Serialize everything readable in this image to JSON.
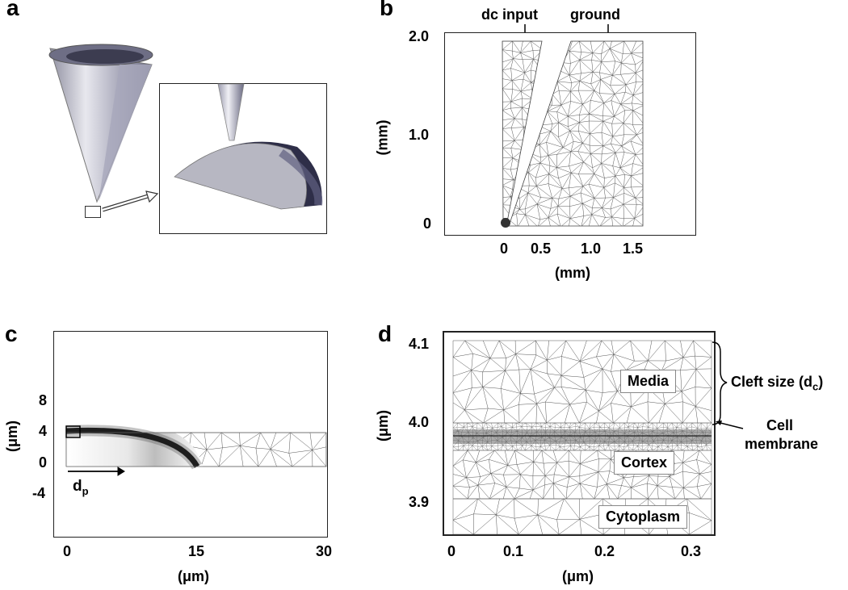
{
  "panels": {
    "a": {
      "letter": "a"
    },
    "b": {
      "letter": "b",
      "annotations": {
        "dc_input": "dc input",
        "ground": "ground"
      },
      "y_ticks": [
        "2.0",
        "1.0",
        "0"
      ],
      "y_label": "(mm)",
      "x_ticks": [
        "0",
        "0.5",
        "1.0",
        "1.5"
      ],
      "x_label": "(mm)"
    },
    "c": {
      "letter": "c",
      "y_ticks": [
        "8",
        "4",
        "0",
        "-4"
      ],
      "y_label": "(μm)",
      "x_ticks": [
        "0",
        "15",
        "30"
      ],
      "x_label": "(μm)",
      "arrow_label": "d",
      "arrow_sub": "p"
    },
    "d": {
      "letter": "d",
      "y_ticks": [
        "4.1",
        "4.0",
        "3.9"
      ],
      "y_label": "(μm)",
      "x_ticks": [
        "0",
        "0.1",
        "0.2",
        "0.3"
      ],
      "x_label": "(μm)",
      "regions": {
        "media": "Media",
        "cortex": "Cortex",
        "cytoplasm": "Cytoplasm"
      },
      "cleft_label": "Cleft size (d",
      "cleft_sub": "c",
      "cleft_close": ")",
      "membrane_line1": "Cell",
      "membrane_line2": "membrane"
    }
  },
  "colors": {
    "mesh": "#555555",
    "frame": "#222222",
    "cone_light": "#c8c8d0",
    "cone_dark": "#55556a"
  }
}
